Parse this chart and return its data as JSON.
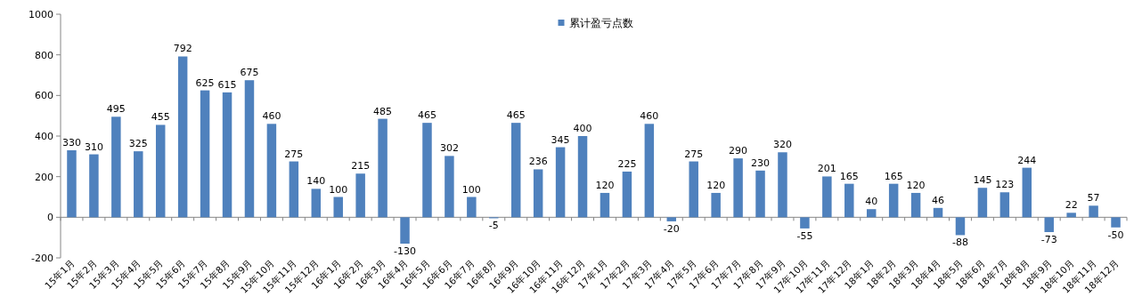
{
  "chart_data": {
    "type": "bar",
    "categories": [
      "15年1月",
      "15年2月",
      "15年3月",
      "15年4月",
      "15年5月",
      "15年6月",
      "15年7月",
      "15年8月",
      "15年9月",
      "15年10月",
      "15年11月",
      "15年12月",
      "16年1月",
      "16年2月",
      "16年3月",
      "16年4月",
      "16年5月",
      "16年6月",
      "16年7月",
      "16年8月",
      "16年9月",
      "16年10月",
      "16年11月",
      "16年12月",
      "17年1月",
      "17年2月",
      "17年3月",
      "17年4月",
      "17年5月",
      "17年6月",
      "17年7月",
      "17年8月",
      "17年9月",
      "17年10月",
      "17年11月",
      "17年12月",
      "18年1月",
      "18年2月",
      "18年3月",
      "18年4月",
      "18年5月",
      "18年6月",
      "18年7月",
      "18年8月",
      "18年9月",
      "18年10月",
      "18年11月",
      "18年12月"
    ],
    "series": [
      {
        "name": "累计盈亏点数",
        "color": "#4f81bd",
        "values": [
          330,
          310,
          495,
          325,
          455,
          792,
          625,
          615,
          675,
          460,
          275,
          140,
          100,
          215,
          485,
          -130,
          465,
          302,
          100,
          -5,
          465,
          236,
          345,
          400,
          120,
          225,
          460,
          -20,
          275,
          120,
          290,
          230,
          320,
          -55,
          201,
          165,
          40,
          165,
          120,
          46,
          -88,
          145,
          123,
          244,
          -73,
          22,
          57,
          -50
        ]
      }
    ],
    "ylim": [
      -200,
      1000
    ],
    "yticks": [
      -200,
      0,
      200,
      400,
      600,
      800,
      1000
    ],
    "data_labels": true,
    "legend": "top"
  }
}
